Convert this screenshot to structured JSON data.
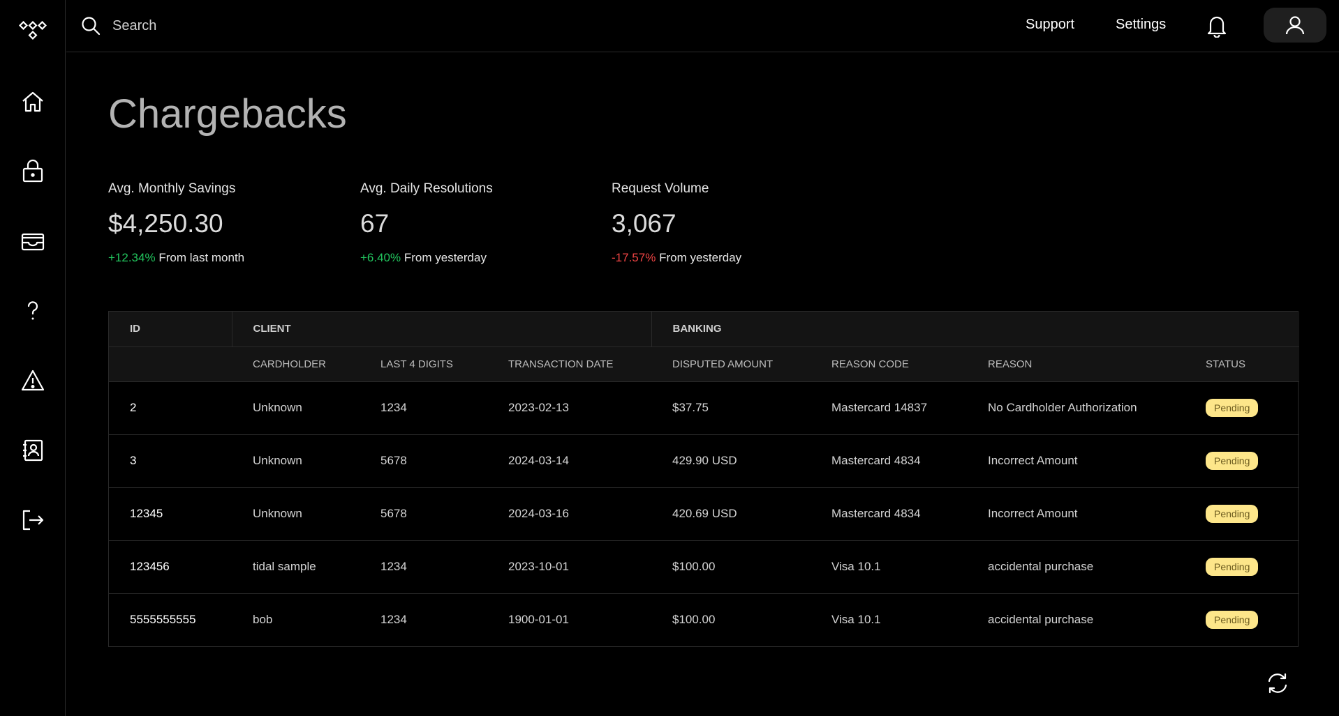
{
  "search": {
    "placeholder": "Search"
  },
  "header": {
    "support_label": "Support",
    "settings_label": "Settings"
  },
  "page": {
    "title": "Chargebacks"
  },
  "stats": [
    {
      "label": "Avg. Monthly Savings",
      "value": "$4,250.30",
      "change": "+12.34%",
      "suffix": "From last month",
      "trend": "up"
    },
    {
      "label": "Avg. Daily Resolutions",
      "value": "67",
      "change": "+6.40%",
      "suffix": "From yesterday",
      "trend": "up"
    },
    {
      "label": "Request Volume",
      "value": "3,067",
      "change": "-17.57%",
      "suffix": "From yesterday",
      "trend": "down"
    }
  ],
  "table": {
    "groups": {
      "id": "ID",
      "client": "CLIENT",
      "banking": "BANKING"
    },
    "columns": [
      "CARDHOLDER",
      "LAST 4 DIGITS",
      "TRANSACTION DATE",
      "DISPUTED AMOUNT",
      "REASON CODE",
      "REASON",
      "STATUS"
    ],
    "rows": [
      {
        "id": "2",
        "cardholder": "Unknown",
        "last4": "1234",
        "date": "2023-02-13",
        "amount": "$37.75",
        "reason_code": "Mastercard 14837",
        "reason": "No Cardholder Authorization",
        "status": "Pending"
      },
      {
        "id": "3",
        "cardholder": "Unknown",
        "last4": "5678",
        "date": "2024-03-14",
        "amount": "429.90 USD",
        "reason_code": "Mastercard 4834",
        "reason": "Incorrect Amount",
        "status": "Pending"
      },
      {
        "id": "12345",
        "cardholder": "Unknown",
        "last4": "5678",
        "date": "2024-03-16",
        "amount": "420.69 USD",
        "reason_code": "Mastercard 4834",
        "reason": "Incorrect Amount",
        "status": "Pending"
      },
      {
        "id": "123456",
        "cardholder": "tidal sample",
        "last4": "1234",
        "date": "2023-10-01",
        "amount": "$100.00",
        "reason_code": "Visa 10.1",
        "reason": "accidental purchase",
        "status": "Pending"
      },
      {
        "id": "5555555555",
        "cardholder": "bob",
        "last4": "1234",
        "date": "1900-01-01",
        "amount": "$100.00",
        "reason_code": "Visa 10.1",
        "reason": "accidental purchase",
        "status": "Pending"
      }
    ]
  },
  "colors": {
    "positive": "#22c55e",
    "negative": "#ef4444",
    "badge": "#fde68a"
  },
  "icons": [
    "logo-icon",
    "home-icon",
    "lock-icon",
    "wallet-icon",
    "help-icon",
    "warning-icon",
    "contacts-icon",
    "logout-icon",
    "search-icon",
    "bell-icon",
    "user-icon",
    "refresh-icon"
  ]
}
